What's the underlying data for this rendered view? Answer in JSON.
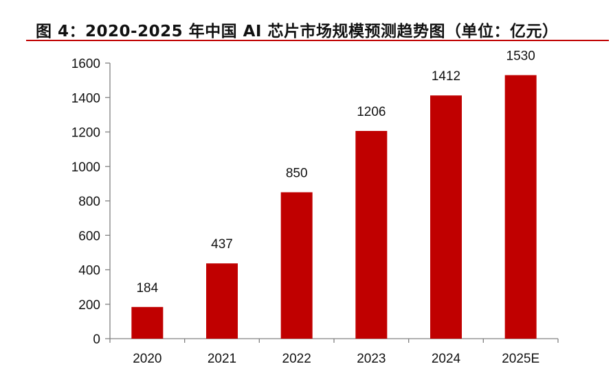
{
  "title": "图 4：2020-2025 年中国 AI 芯片市场规模预测趋势图（单位：亿元）",
  "colors": {
    "bar": "#c00000",
    "title_rule": "#c00000",
    "axis": "#7f7f7f",
    "text": "#111111"
  },
  "chart_data": {
    "type": "bar",
    "title": "图 4：2020-2025 年中国 AI 芯片市场规模预测趋势图（单位：亿元）",
    "xlabel": "",
    "ylabel": "",
    "categories": [
      "2020",
      "2021",
      "2022",
      "2023",
      "2024",
      "2025E"
    ],
    "values": [
      184,
      437,
      850,
      1206,
      1412,
      1530
    ],
    "ylim": [
      0,
      1600
    ],
    "yticks": [
      0,
      200,
      400,
      600,
      800,
      1000,
      1200,
      1400,
      1600
    ],
    "data_labels": true,
    "grid": false,
    "legend": "none"
  }
}
